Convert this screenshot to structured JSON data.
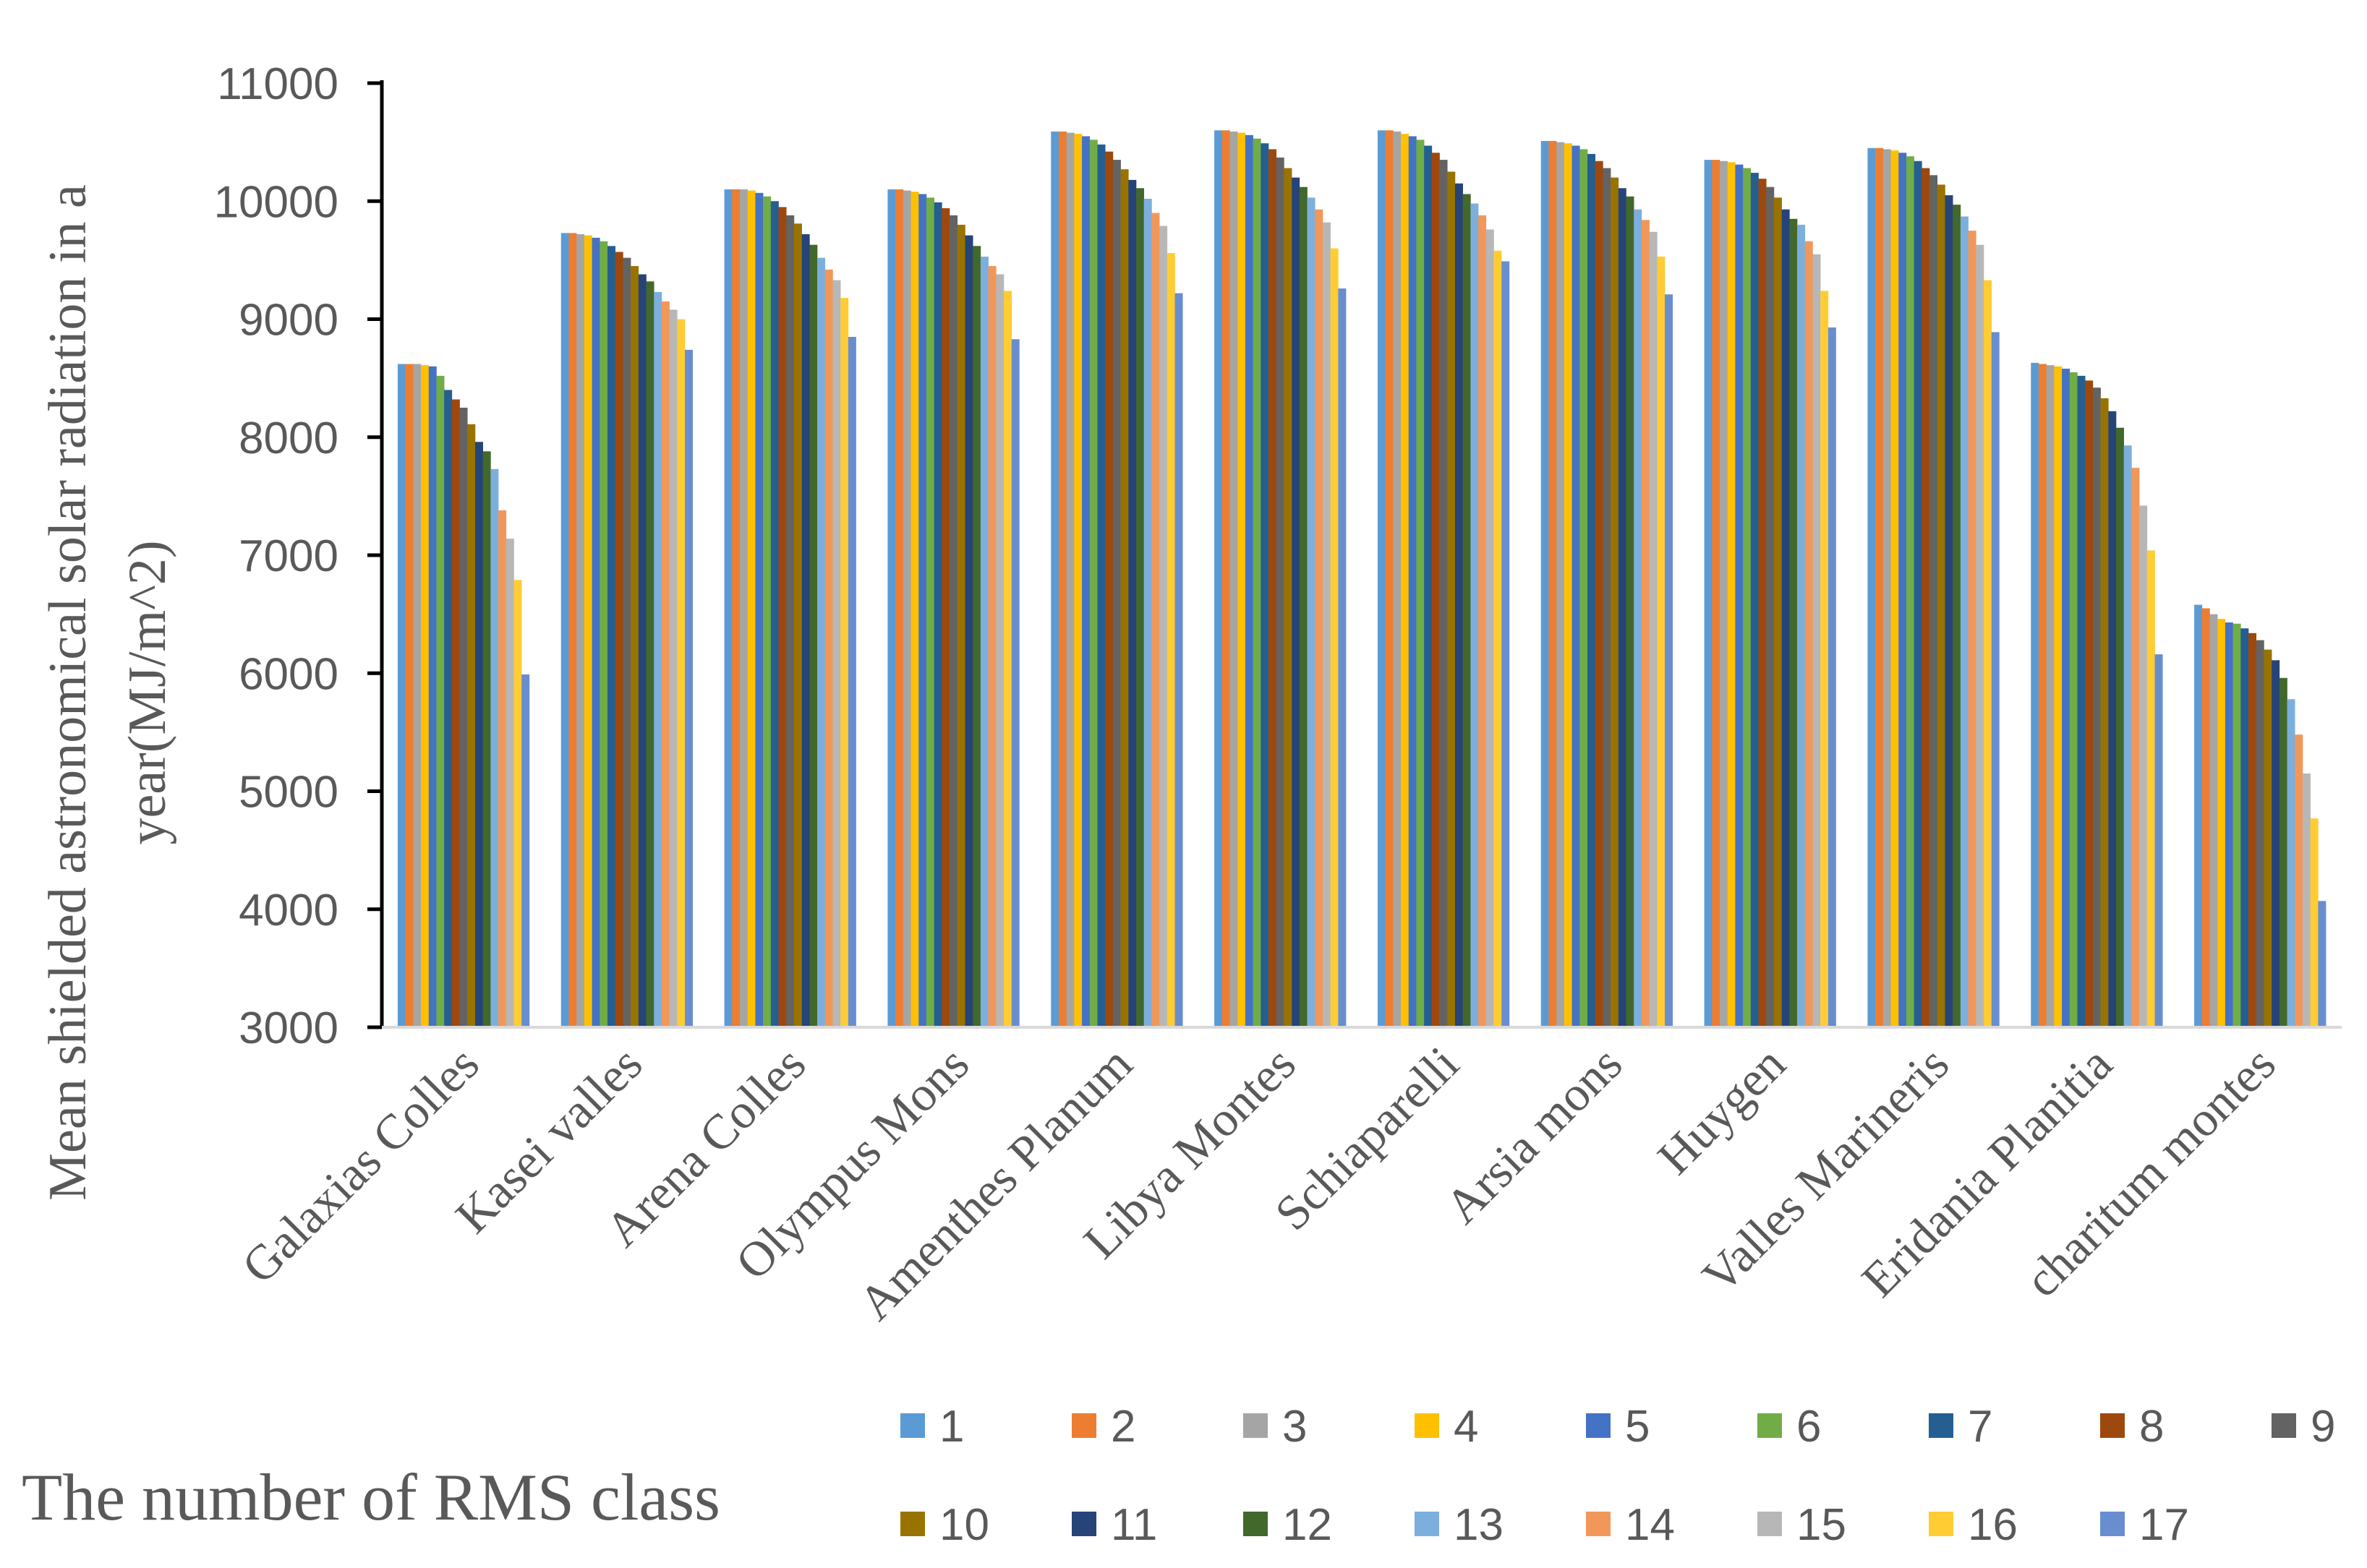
{
  "chart_data": {
    "type": "bar",
    "ylabel_line1": "Mean shielded astronomical solar radiation in a",
    "ylabel_line2": "year(MJ/m^2)",
    "x_title": "The number of RMS class",
    "ylim": [
      3000,
      11000
    ],
    "yticks": [
      3000,
      4000,
      5000,
      6000,
      7000,
      8000,
      9000,
      10000,
      11000
    ],
    "categories": [
      "Galaxias Colles",
      "Kasei valles",
      "Arena Colles",
      "Olympus Mons",
      "Amenthes Planum",
      "Libya Montes",
      "Schiaparelli",
      "Arsia mons",
      "Huygen",
      "Valles Marineris",
      "Eridania Planitia",
      "charitum montes"
    ],
    "series": [
      {
        "name": "1",
        "color": "#5B9BD5",
        "values": [
          8620,
          9730,
          10100,
          10100,
          10590,
          10600,
          10600,
          10510,
          10350,
          10450,
          8630,
          6580
        ]
      },
      {
        "name": "2",
        "color": "#ED7D31",
        "values": [
          8620,
          9730,
          10100,
          10100,
          10590,
          10600,
          10600,
          10510,
          10350,
          10450,
          8620,
          6550
        ]
      },
      {
        "name": "3",
        "color": "#A5A5A5",
        "values": [
          8620,
          9720,
          10100,
          10090,
          10580,
          10590,
          10590,
          10500,
          10340,
          10440,
          8610,
          6500
        ]
      },
      {
        "name": "4",
        "color": "#FFC000",
        "values": [
          8610,
          9710,
          10090,
          10080,
          10570,
          10580,
          10570,
          10490,
          10330,
          10430,
          8600,
          6460
        ]
      },
      {
        "name": "5",
        "color": "#4472C4",
        "values": [
          8600,
          9690,
          10070,
          10060,
          10550,
          10560,
          10550,
          10470,
          10310,
          10410,
          8580,
          6430
        ]
      },
      {
        "name": "6",
        "color": "#70AD47",
        "values": [
          8520,
          9660,
          10040,
          10030,
          10520,
          10530,
          10520,
          10440,
          10280,
          10380,
          8550,
          6420
        ]
      },
      {
        "name": "7",
        "color": "#255E91",
        "values": [
          8400,
          9620,
          10000,
          9990,
          10480,
          10490,
          10470,
          10400,
          10240,
          10340,
          8520,
          6380
        ]
      },
      {
        "name": "8",
        "color": "#9E480E",
        "values": [
          8320,
          9570,
          9950,
          9940,
          10420,
          10440,
          10410,
          10340,
          10190,
          10280,
          8480,
          6340
        ]
      },
      {
        "name": "9",
        "color": "#636363",
        "values": [
          8250,
          9520,
          9880,
          9880,
          10350,
          10370,
          10350,
          10280,
          10120,
          10220,
          8420,
          6280
        ]
      },
      {
        "name": "10",
        "color": "#997300",
        "values": [
          8110,
          9450,
          9810,
          9800,
          10270,
          10280,
          10250,
          10200,
          10030,
          10140,
          8330,
          6200
        ]
      },
      {
        "name": "11",
        "color": "#264478",
        "values": [
          7960,
          9380,
          9720,
          9710,
          10180,
          10200,
          10150,
          10110,
          9930,
          10050,
          8220,
          6110
        ]
      },
      {
        "name": "12",
        "color": "#43682B",
        "values": [
          7880,
          9320,
          9630,
          9620,
          10110,
          10120,
          10060,
          10040,
          9850,
          9970,
          8080,
          5960
        ]
      },
      {
        "name": "13",
        "color": "#7CAFDD",
        "values": [
          7730,
          9230,
          9520,
          9530,
          10020,
          10030,
          9980,
          9930,
          9800,
          9870,
          7930,
          5780
        ]
      },
      {
        "name": "14",
        "color": "#F1975A",
        "values": [
          7380,
          9150,
          9420,
          9450,
          9900,
          9930,
          9880,
          9840,
          9660,
          9750,
          7740,
          5480
        ]
      },
      {
        "name": "15",
        "color": "#B7B7B7",
        "values": [
          7140,
          9080,
          9330,
          9380,
          9790,
          9820,
          9760,
          9740,
          9550,
          9630,
          7420,
          5150
        ]
      },
      {
        "name": "16",
        "color": "#FFCD33",
        "values": [
          6790,
          9000,
          9180,
          9240,
          9560,
          9600,
          9580,
          9530,
          9240,
          9330,
          7040,
          4770
        ]
      },
      {
        "name": "17",
        "color": "#698ED0",
        "values": [
          5990,
          8740,
          8850,
          8830,
          9220,
          9260,
          9490,
          9210,
          8930,
          8890,
          6160,
          4070
        ]
      }
    ]
  }
}
